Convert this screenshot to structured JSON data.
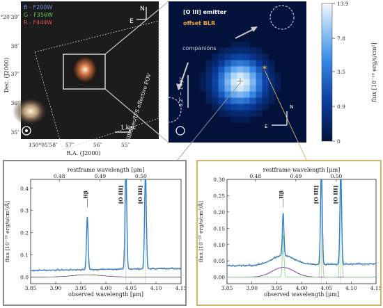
{
  "colors": {
    "accent_blue": "#2b7fd0",
    "gray_frame": "#8a8a8a",
    "gold_frame": "#d4b46a",
    "dark_panel": "#0a0a0a",
    "map_bg": "#02123b",
    "host_green": "#7fcf7f",
    "blr_purple": "#7a2e8c",
    "emitter_orange": "#f2a73a"
  },
  "rgb_panel": {
    "legend": [
      {
        "label": "B - F200W",
        "color": "#6f8fe0"
      },
      {
        "label": "G - F356W",
        "color": "#5fbf5f"
      },
      {
        "label": "R - F444W",
        "color": "#e05050"
      }
    ],
    "ylabel": "Dec. (J2000)",
    "xlabel": "R.A. (J2000)",
    "yticks": [
      "2°20′39″",
      "38″",
      "37″",
      "36″",
      "35″"
    ],
    "xticks": [
      "150°05′58″",
      "57″",
      "56″",
      "55″"
    ],
    "compass_n": "N",
    "compass_e": "E",
    "scale_label": "1 kpc",
    "fov_label": "NIRSpec/IFS effective FOV"
  },
  "map_panel": {
    "title": "[O III] emitter",
    "subtitle": "offset BLR",
    "companions_label": "companions",
    "scale_label": "0.2″ ~ 1 kpc",
    "compass_n": "N",
    "compass_e": "E",
    "colorbar": {
      "ticks": [
        "13.9",
        "7.8",
        "3.5",
        "0.9",
        "0"
      ],
      "label": "flux [10⁻¹⁹ erg/s/cm²]"
    }
  },
  "spectrum_left": {
    "top_axis_label": "restframe wavelength [μm]",
    "top_ticks": [
      "0.48",
      "0.49",
      "0.50"
    ],
    "bottom_axis_label": "observed wavelength [μm]",
    "xticks": [
      "3.85",
      "3.90",
      "3.95",
      "4.00",
      "4.05",
      "4.10",
      "4.15"
    ],
    "ylabel": "flux [10⁻²⁰ erg/s/cm²/Å]",
    "yticks": [
      "0.0",
      "0.1",
      "0.2",
      "0.3",
      "0.4"
    ],
    "line_labels": [
      "Hβ",
      "[O III]",
      "[O III]"
    ]
  },
  "spectrum_right": {
    "top_axis_label": "restframe wavelength [μm]",
    "top_ticks": [
      "0.48",
      "0.49",
      "0.50"
    ],
    "bottom_axis_label": "observed wavelength [μm]",
    "xticks": [
      "3.85",
      "3.90",
      "3.95",
      "4.00",
      "4.05",
      "4.10",
      "4.15"
    ],
    "ylabel": "flux [10⁻²⁰ erg/s/cm²/Å]",
    "yticks": [
      "0.00",
      "0.05",
      "0.10",
      "0.15",
      "0.20",
      "0.25",
      "0.30"
    ],
    "line_labels": [
      "Hβ",
      "[O III]",
      "[O III]"
    ]
  }
}
